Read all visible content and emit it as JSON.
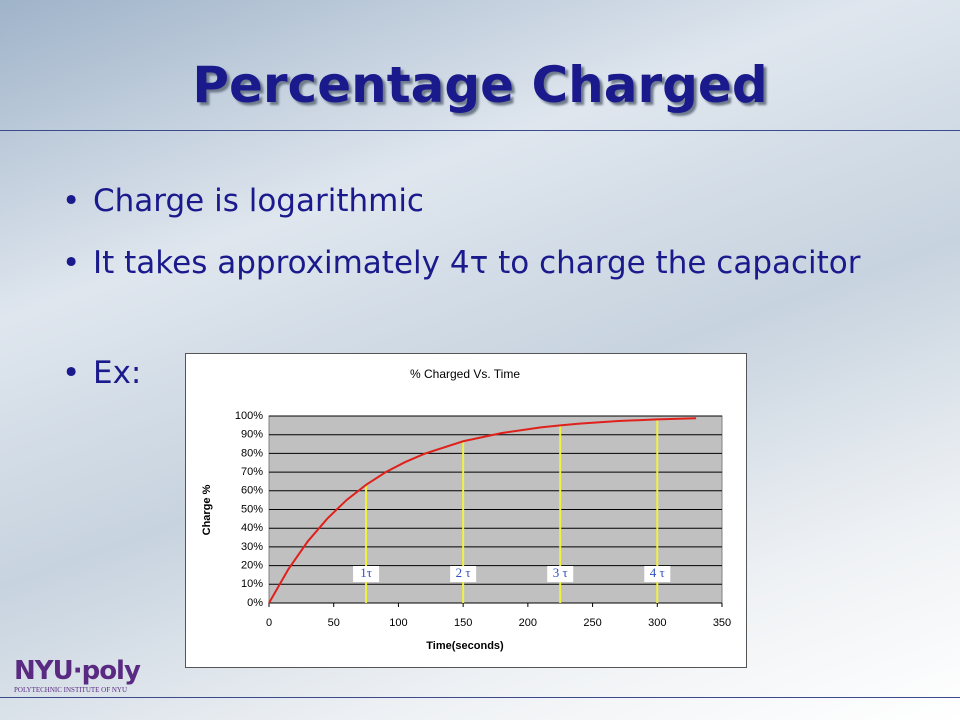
{
  "slide": {
    "title": "Percentage Charged",
    "bullets": [
      "Charge is logarithmic",
      "It takes approximately 4τ to charge the capacitor",
      "Ex:"
    ],
    "logo": {
      "name": "NYU·poly",
      "subtitle": "POLYTECHNIC INSTITUTE OF NYU"
    }
  },
  "chart_data": {
    "type": "line",
    "title": "% Charged Vs. Time",
    "x_label": "Time(seconds)",
    "y_label": "Charge %",
    "x": [
      0,
      15,
      30,
      45,
      60,
      75,
      90,
      105,
      120,
      150,
      180,
      210,
      225,
      240,
      270,
      300,
      330
    ],
    "series": [
      {
        "name": "% Charged",
        "color": "#e0201b",
        "values": [
          0,
          18.1,
          33.0,
          45.1,
          55.1,
          63.2,
          69.9,
          75.3,
          79.8,
          86.5,
          90.9,
          93.9,
          95.0,
          95.9,
          97.3,
          98.2,
          98.8
        ]
      }
    ],
    "markers": [
      {
        "x": 75,
        "y": 63.2,
        "label": "1τ"
      },
      {
        "x": 150,
        "y": 86.5,
        "label": "2 τ"
      },
      {
        "x": 225,
        "y": 95.0,
        "label": "3 τ"
      },
      {
        "x": 300,
        "y": 98.2,
        "label": "4 τ"
      }
    ],
    "marker_color": "#f2f23a",
    "xlim": [
      0,
      350
    ],
    "xticks": [
      0,
      50,
      100,
      150,
      200,
      250,
      300,
      350
    ],
    "ylim": [
      0,
      100
    ],
    "yticks": [
      {
        "value": 0,
        "label": "0%"
      },
      {
        "value": 10,
        "label": "10%"
      },
      {
        "value": 20,
        "label": "20%"
      },
      {
        "value": 30,
        "label": "30%"
      },
      {
        "value": 40,
        "label": "40%"
      },
      {
        "value": 50,
        "label": "50%"
      },
      {
        "value": 60,
        "label": "60%"
      },
      {
        "value": 70,
        "label": "70%"
      },
      {
        "value": 80,
        "label": "80%"
      },
      {
        "value": 90,
        "label": "90%"
      },
      {
        "value": 100,
        "label": "100%"
      }
    ],
    "grid": true,
    "plot_background": "#c0c0c0"
  }
}
